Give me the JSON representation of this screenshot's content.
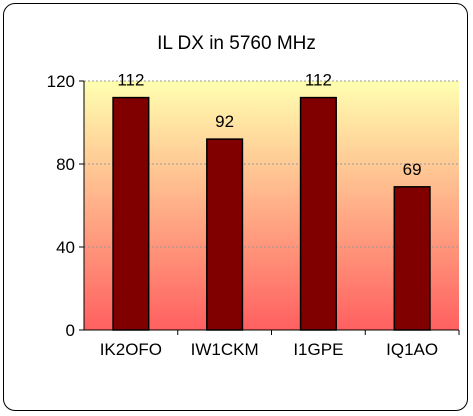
{
  "chart_data": {
    "type": "bar",
    "title": "IL DX in 5760 MHz",
    "xlabel": "",
    "ylabel": "",
    "categories": [
      "IK2OFO",
      "IW1CKM",
      "I1GPE",
      "IQ1AO"
    ],
    "values": [
      112,
      92,
      112,
      69
    ],
    "data_labels": [
      "112",
      "92",
      "112",
      "69"
    ],
    "ylim": [
      0,
      120
    ],
    "yticks": [
      0,
      40,
      80,
      120
    ],
    "grid": true,
    "legend": "none",
    "colors": {
      "bar_fill": "#800000",
      "bar_stroke": "#000000",
      "plot_top": "#ffffb0",
      "plot_bottom": "#ff6060",
      "gridline": "#999999"
    }
  }
}
